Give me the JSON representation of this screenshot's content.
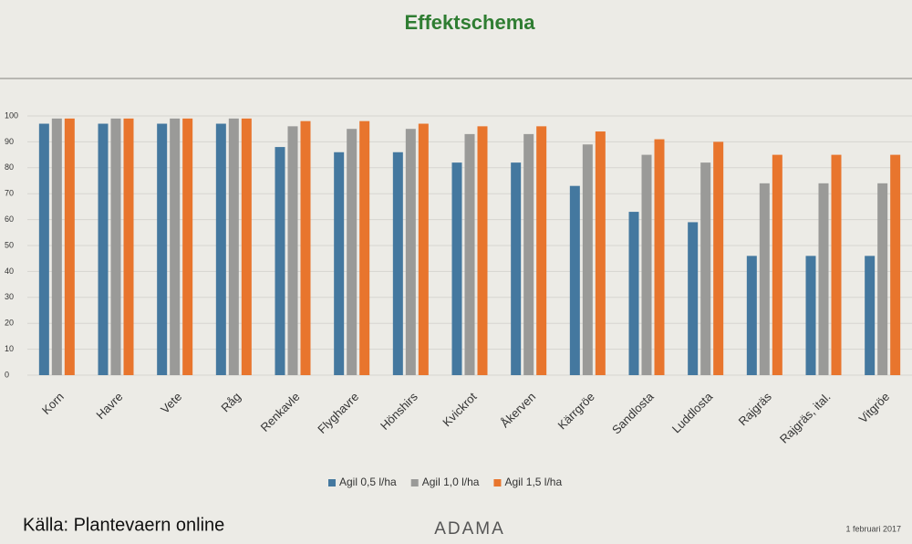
{
  "chart_data": {
    "type": "bar",
    "title": "Effektschema",
    "categories": [
      "Korn",
      "Havre",
      "Vete",
      "Råg",
      "Renkavle",
      "Flyghavre",
      "Hönshirs",
      "Kvickrot",
      "Åkerven",
      "Kärrgröe",
      "Sandlosta",
      "Luddlosta",
      "Rajgräs",
      "Rajgräs, ital.",
      "Vitgröe"
    ],
    "series": [
      {
        "name": "Agil 0,5 l/ha",
        "color": "#44789f",
        "values": [
          97,
          97,
          97,
          97,
          88,
          86,
          86,
          82,
          82,
          73,
          63,
          59,
          46,
          46,
          46
        ]
      },
      {
        "name": "Agil 1,0 l/ha",
        "color": "#9a9a98",
        "values": [
          99,
          99,
          99,
          99,
          96,
          95,
          95,
          93,
          93,
          89,
          85,
          82,
          74,
          74,
          74
        ]
      },
      {
        "name": "Agil 1,5 l/ha",
        "color": "#e8752d",
        "values": [
          99,
          99,
          99,
          99,
          98,
          98,
          97,
          96,
          96,
          94,
          91,
          90,
          85,
          85,
          85
        ]
      }
    ],
    "ylim": [
      0,
      100
    ],
    "yticks": [
      0,
      10,
      20,
      30,
      40,
      50,
      60,
      70,
      80,
      90,
      100
    ],
    "grid": true,
    "legend": "bottom",
    "source": "Källa: Plantevaern online",
    "logo": "ADAMA",
    "date": "1 februari 2017"
  }
}
